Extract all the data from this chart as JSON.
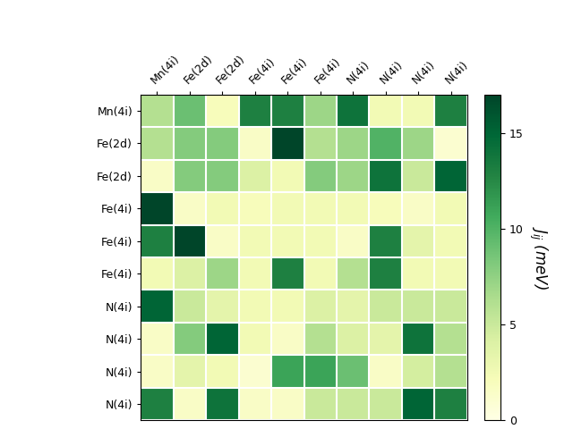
{
  "labels": [
    "Mn(4i)",
    "Fe(2d)",
    "Fe(2d)",
    "Fe(4i)",
    "Fe(4i)",
    "Fe(4i)",
    "N(4i)",
    "N(4i)",
    "N(4i)",
    "N(4i)"
  ],
  "matrix": [
    [
      6.0,
      9.0,
      2.0,
      13.0,
      13.0,
      7.0,
      14.0,
      2.5,
      2.5,
      13.0
    ],
    [
      6.0,
      8.0,
      8.0,
      1.5,
      17.0,
      6.0,
      7.0,
      10.0,
      7.0,
      1.0
    ],
    [
      1.5,
      8.0,
      8.0,
      4.0,
      2.5,
      8.0,
      7.0,
      14.0,
      5.0,
      15.0
    ],
    [
      17.0,
      1.5,
      2.5,
      2.0,
      2.5,
      2.5,
      2.5,
      2.0,
      1.5,
      2.5
    ],
    [
      13.0,
      17.0,
      1.5,
      2.5,
      2.5,
      2.5,
      1.5,
      13.0,
      3.5,
      2.5
    ],
    [
      2.5,
      4.0,
      7.0,
      2.5,
      13.0,
      2.5,
      6.0,
      13.0,
      2.5,
      2.5
    ],
    [
      15.0,
      5.0,
      3.5,
      2.5,
      2.5,
      4.0,
      3.5,
      5.0,
      5.0,
      5.0
    ],
    [
      1.5,
      8.0,
      15.0,
      2.5,
      1.5,
      6.0,
      4.0,
      3.5,
      14.0,
      6.0
    ],
    [
      1.5,
      3.5,
      2.5,
      1.0,
      11.0,
      11.0,
      9.0,
      1.5,
      4.5,
      6.0
    ],
    [
      13.0,
      1.5,
      14.0,
      1.5,
      1.5,
      5.0,
      5.0,
      5.0,
      15.0,
      13.0
    ]
  ],
  "vmin": 0,
  "vmax": 17,
  "cmap": "YlGn",
  "colorbar_label": "$J_{ij}$ (meV)",
  "colorbar_ticks": [
    0,
    5,
    10,
    15
  ],
  "figsize": [
    6.4,
    4.8
  ],
  "dpi": 100
}
